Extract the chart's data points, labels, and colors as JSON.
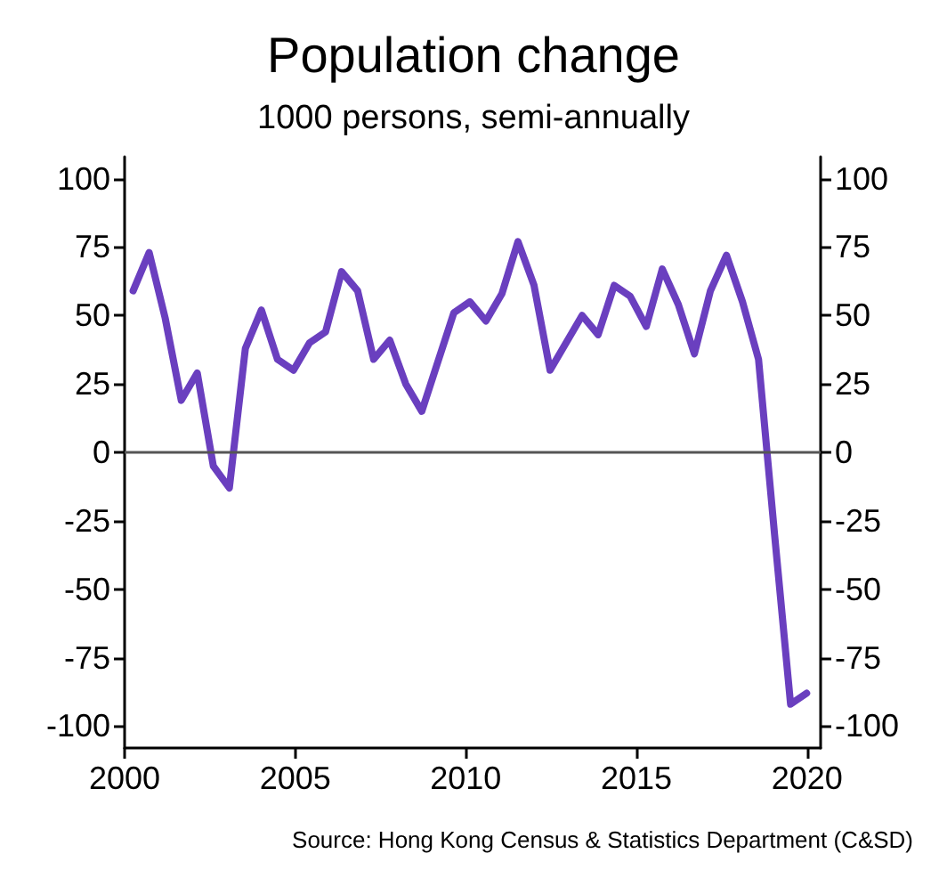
{
  "chart_data": {
    "type": "line",
    "title": "Population change",
    "subtitle": "1000 persons, semi-annually",
    "annotations": [
      "Source: Hong Kong Census & Statistics Department (C&SD)"
    ],
    "x": [
      2000.25,
      2000.72,
      2001.19,
      2001.66,
      2002.13,
      2002.6,
      2003.07,
      2003.54,
      2004.01,
      2004.48,
      2004.95,
      2005.42,
      2005.89,
      2006.36,
      2006.83,
      2007.3,
      2007.77,
      2008.24,
      2008.71,
      2009.18,
      2009.65,
      2010.12,
      2010.59,
      2011.06,
      2011.53,
      2012.0,
      2012.47,
      2012.94,
      2013.41,
      2013.88,
      2014.35,
      2014.82,
      2015.29,
      2015.76,
      2016.23,
      2016.7,
      2017.17,
      2017.64,
      2018.11,
      2018.58,
      2019.05,
      2019.52,
      2019.99
    ],
    "series": [
      {
        "color": "#6a3fbf",
        "values": [
          59,
          73,
          49,
          19,
          29,
          -5,
          -13,
          38,
          52,
          34,
          30,
          40,
          44,
          66,
          59,
          34,
          41,
          25,
          15,
          33,
          51,
          55,
          48,
          58,
          77,
          61,
          30,
          40,
          50,
          43,
          61,
          57,
          46,
          67,
          54,
          36,
          59,
          72,
          55,
          34,
          -30,
          -92,
          -88
        ]
      }
    ],
    "xlim": [
      2000,
      2020.4
    ],
    "xticks": [
      2000,
      2005,
      2010,
      2015,
      2020
    ],
    "ylim": [
      -108,
      108
    ],
    "yticks": [
      -100,
      -75,
      -50,
      -25,
      0,
      25,
      50,
      75,
      100
    ],
    "y2lim": [
      -108,
      108
    ],
    "y2ticks": [
      -100,
      -75,
      -50,
      -25,
      0,
      25,
      50,
      75,
      100
    ],
    "ref_lines": [
      {
        "axis": "y",
        "value": 0,
        "color": "#555555"
      }
    ],
    "grid": false,
    "marker": "none",
    "line_style": "solid"
  }
}
